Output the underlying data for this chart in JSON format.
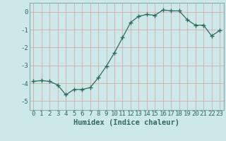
{
  "x": [
    0,
    1,
    2,
    3,
    4,
    5,
    6,
    7,
    8,
    9,
    10,
    11,
    12,
    13,
    14,
    15,
    16,
    17,
    18,
    19,
    20,
    21,
    22,
    23
  ],
  "y": [
    -3.9,
    -3.85,
    -3.9,
    -4.1,
    -4.65,
    -4.35,
    -4.35,
    -4.25,
    -3.7,
    -3.05,
    -2.3,
    -1.45,
    -0.6,
    -0.25,
    -0.15,
    -0.2,
    0.1,
    0.05,
    0.05,
    -0.45,
    -0.75,
    -0.75,
    -1.35,
    -1.05
  ],
  "line_color": "#2d6b5e",
  "marker": "+",
  "marker_size": 4,
  "background_color": "#cce8e8",
  "grid_color": "#b8d4d4",
  "xlabel": "Humidex (Indice chaleur)",
  "xlim": [
    -0.5,
    23.5
  ],
  "ylim": [
    -5.5,
    0.5
  ],
  "yticks": [
    0,
    -1,
    -2,
    -3,
    -4,
    -5
  ],
  "xticks": [
    0,
    1,
    2,
    3,
    4,
    5,
    6,
    7,
    8,
    9,
    10,
    11,
    12,
    13,
    14,
    15,
    16,
    17,
    18,
    19,
    20,
    21,
    22,
    23
  ],
  "xtick_labels": [
    "0",
    "1",
    "2",
    "3",
    "4",
    "5",
    "6",
    "7",
    "8",
    "9",
    "10",
    "11",
    "12",
    "13",
    "14",
    "15",
    "16",
    "17",
    "18",
    "19",
    "20",
    "21",
    "22",
    "23"
  ],
  "tick_color": "#2d6b5e",
  "label_color": "#2d6b5e",
  "spine_color": "#8aabab",
  "font_size": 6.5,
  "xlabel_font_size": 7.5
}
